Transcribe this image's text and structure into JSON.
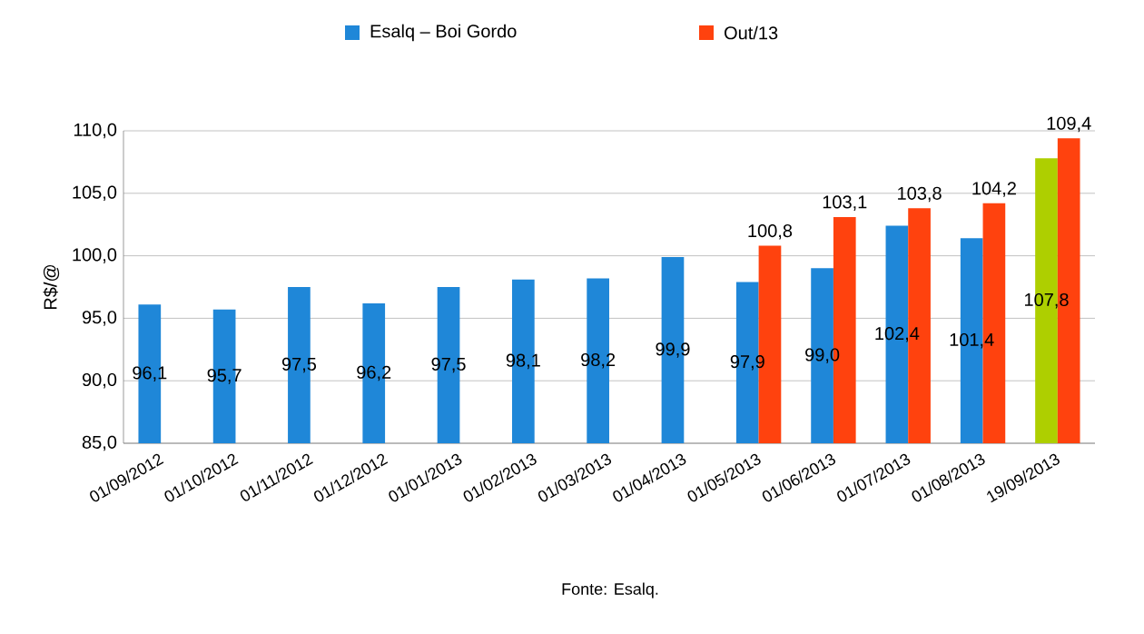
{
  "chart_data": {
    "type": "bar",
    "ylabel": "R$/@",
    "categories": [
      "01/09/2012",
      "01/10/2012",
      "01/11/2012",
      "01/12/2012",
      "01/01/2013",
      "01/02/2013",
      "01/03/2013",
      "01/04/2013",
      "01/05/2013",
      "01/06/2013",
      "01/07/2013",
      "01/08/2013",
      "19/09/2013"
    ],
    "series": [
      {
        "name": "Esalq – Boi Gordo",
        "color": "#1f87d8",
        "colors": [
          "#1f87d8",
          "#1f87d8",
          "#1f87d8",
          "#1f87d8",
          "#1f87d8",
          "#1f87d8",
          "#1f87d8",
          "#1f87d8",
          "#1f87d8",
          "#1f87d8",
          "#1f87d8",
          "#1f87d8",
          "#aecf00"
        ],
        "values": [
          96.1,
          95.7,
          97.5,
          96.2,
          97.5,
          98.1,
          98.2,
          99.9,
          97.9,
          99.0,
          102.4,
          101.4,
          107.8
        ],
        "value_labels": [
          "96,1",
          "95,7",
          "97,5",
          "96,2",
          "97,5",
          "98,1",
          "98,2",
          "99,9",
          "97,9",
          "99,0",
          "102,4",
          "101,4",
          "107,8"
        ]
      },
      {
        "name": "Out/13",
        "color": "#ff420e",
        "values": [
          null,
          null,
          null,
          null,
          null,
          null,
          null,
          null,
          100.8,
          103.1,
          103.8,
          104.2,
          109.4
        ],
        "value_labels": [
          null,
          null,
          null,
          null,
          null,
          null,
          null,
          null,
          "100,8",
          "103,1",
          "103,8",
          "104,2",
          "109,4"
        ]
      }
    ],
    "ylim": [
      85,
      110
    ],
    "yticks": [
      {
        "value": 85,
        "label": "85,0"
      },
      {
        "value": 90,
        "label": "90,0"
      },
      {
        "value": 95,
        "label": "95,0"
      },
      {
        "value": 100,
        "label": "100,0"
      },
      {
        "value": 105,
        "label": "105,0"
      },
      {
        "value": 110,
        "label": "110,0"
      }
    ],
    "grid": "y",
    "legend": "top",
    "annotations": [
      "Fonte: Esalq."
    ]
  }
}
